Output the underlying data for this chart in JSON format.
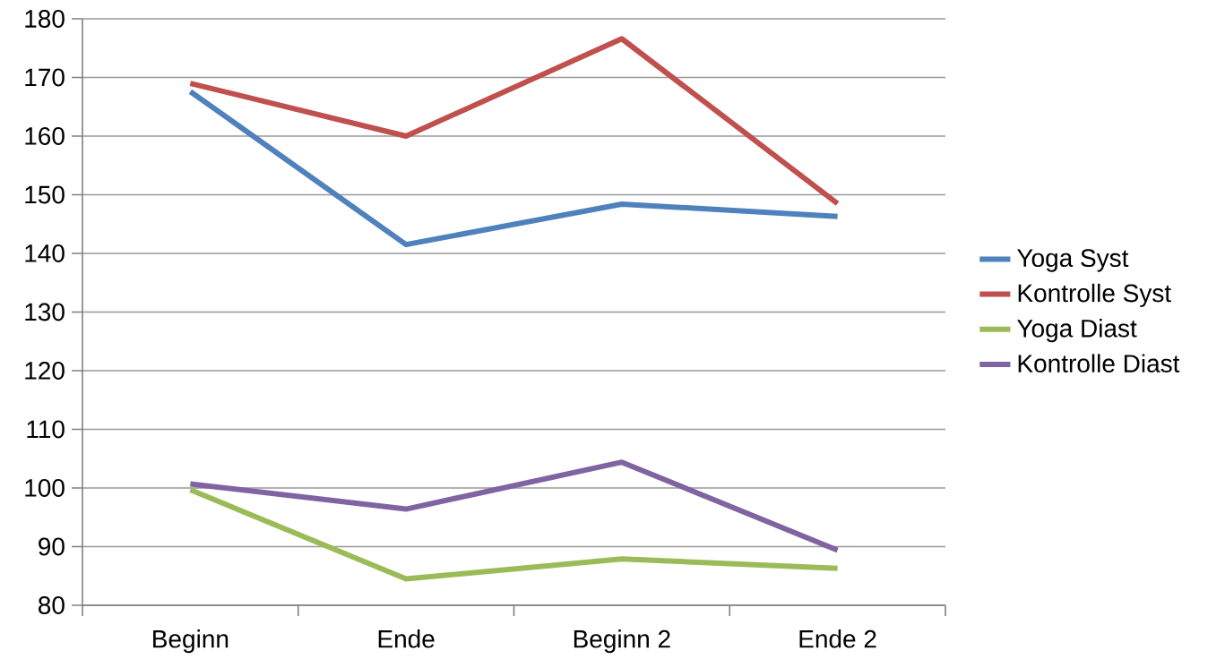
{
  "chart_data": {
    "type": "line",
    "categories": [
      "Beginn",
      "Ende",
      "Beginn 2",
      "Ende 2"
    ],
    "series": [
      {
        "name": "Yoga Syst",
        "color": "#4f81bd",
        "values": [
          167.6,
          141.5,
          148.4,
          146.3
        ]
      },
      {
        "name": "Kontrolle Syst",
        "color": "#c0504d",
        "values": [
          169.0,
          160.0,
          176.6,
          148.5
        ]
      },
      {
        "name": "Yoga Diast",
        "color": "#9bbb59",
        "values": [
          99.7,
          84.5,
          87.9,
          86.3
        ]
      },
      {
        "name": "Kontrolle Diast",
        "color": "#8064a2",
        "values": [
          100.7,
          96.4,
          104.4,
          89.4
        ]
      }
    ],
    "ylim": [
      80,
      180
    ],
    "yticks": [
      80,
      90,
      100,
      110,
      120,
      130,
      140,
      150,
      160,
      170,
      180
    ],
    "grid": "y",
    "legend": "right"
  }
}
